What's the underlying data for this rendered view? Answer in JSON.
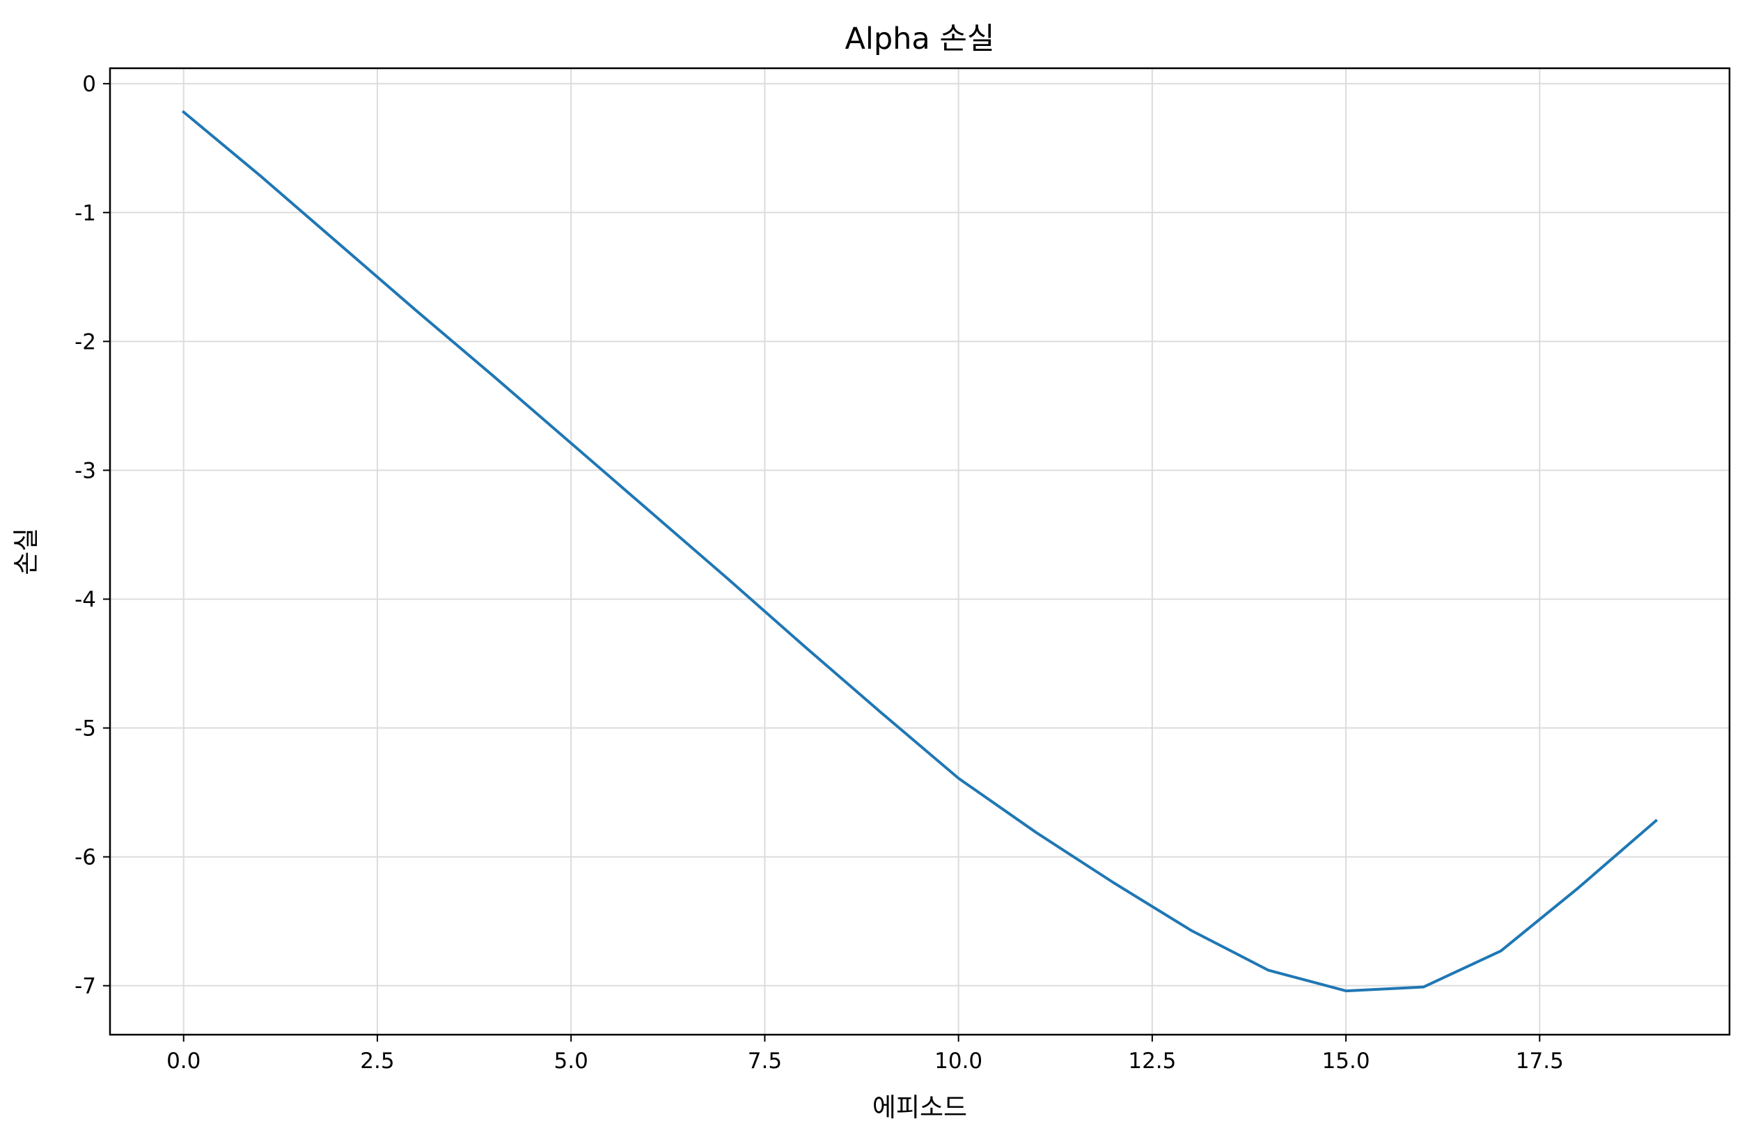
{
  "chart_data": {
    "type": "line",
    "title": "Alpha 손실",
    "xlabel": "에피소드",
    "ylabel": "손실",
    "xlim": [
      -0.95,
      19.95
    ],
    "ylim": [
      -7.38,
      0.12
    ],
    "xticks": [
      0.0,
      2.5,
      5.0,
      7.5,
      10.0,
      12.5,
      15.0,
      17.5
    ],
    "xtick_labels": [
      "0.0",
      "2.5",
      "5.0",
      "7.5",
      "10.0",
      "12.5",
      "15.0",
      "17.5"
    ],
    "yticks": [
      0,
      -1,
      -2,
      -3,
      -4,
      -5,
      -6,
      -7
    ],
    "ytick_labels": [
      "0",
      "-1",
      "-2",
      "-3",
      "-4",
      "-5",
      "-6",
      "-7"
    ],
    "grid": true,
    "legend": false,
    "series": [
      {
        "color": "#1f77b4",
        "x": [
          0,
          1,
          2,
          3,
          4,
          5,
          6,
          7,
          8,
          9,
          10,
          11,
          12,
          13,
          14,
          15,
          16,
          17,
          18,
          19
        ],
        "y": [
          -0.22,
          -0.72,
          -1.24,
          -1.76,
          -2.27,
          -2.79,
          -3.31,
          -3.83,
          -4.36,
          -4.88,
          -5.39,
          -5.81,
          -6.2,
          -6.57,
          -6.88,
          -7.04,
          -7.01,
          -6.73,
          -6.24,
          -5.72
        ]
      }
    ]
  }
}
